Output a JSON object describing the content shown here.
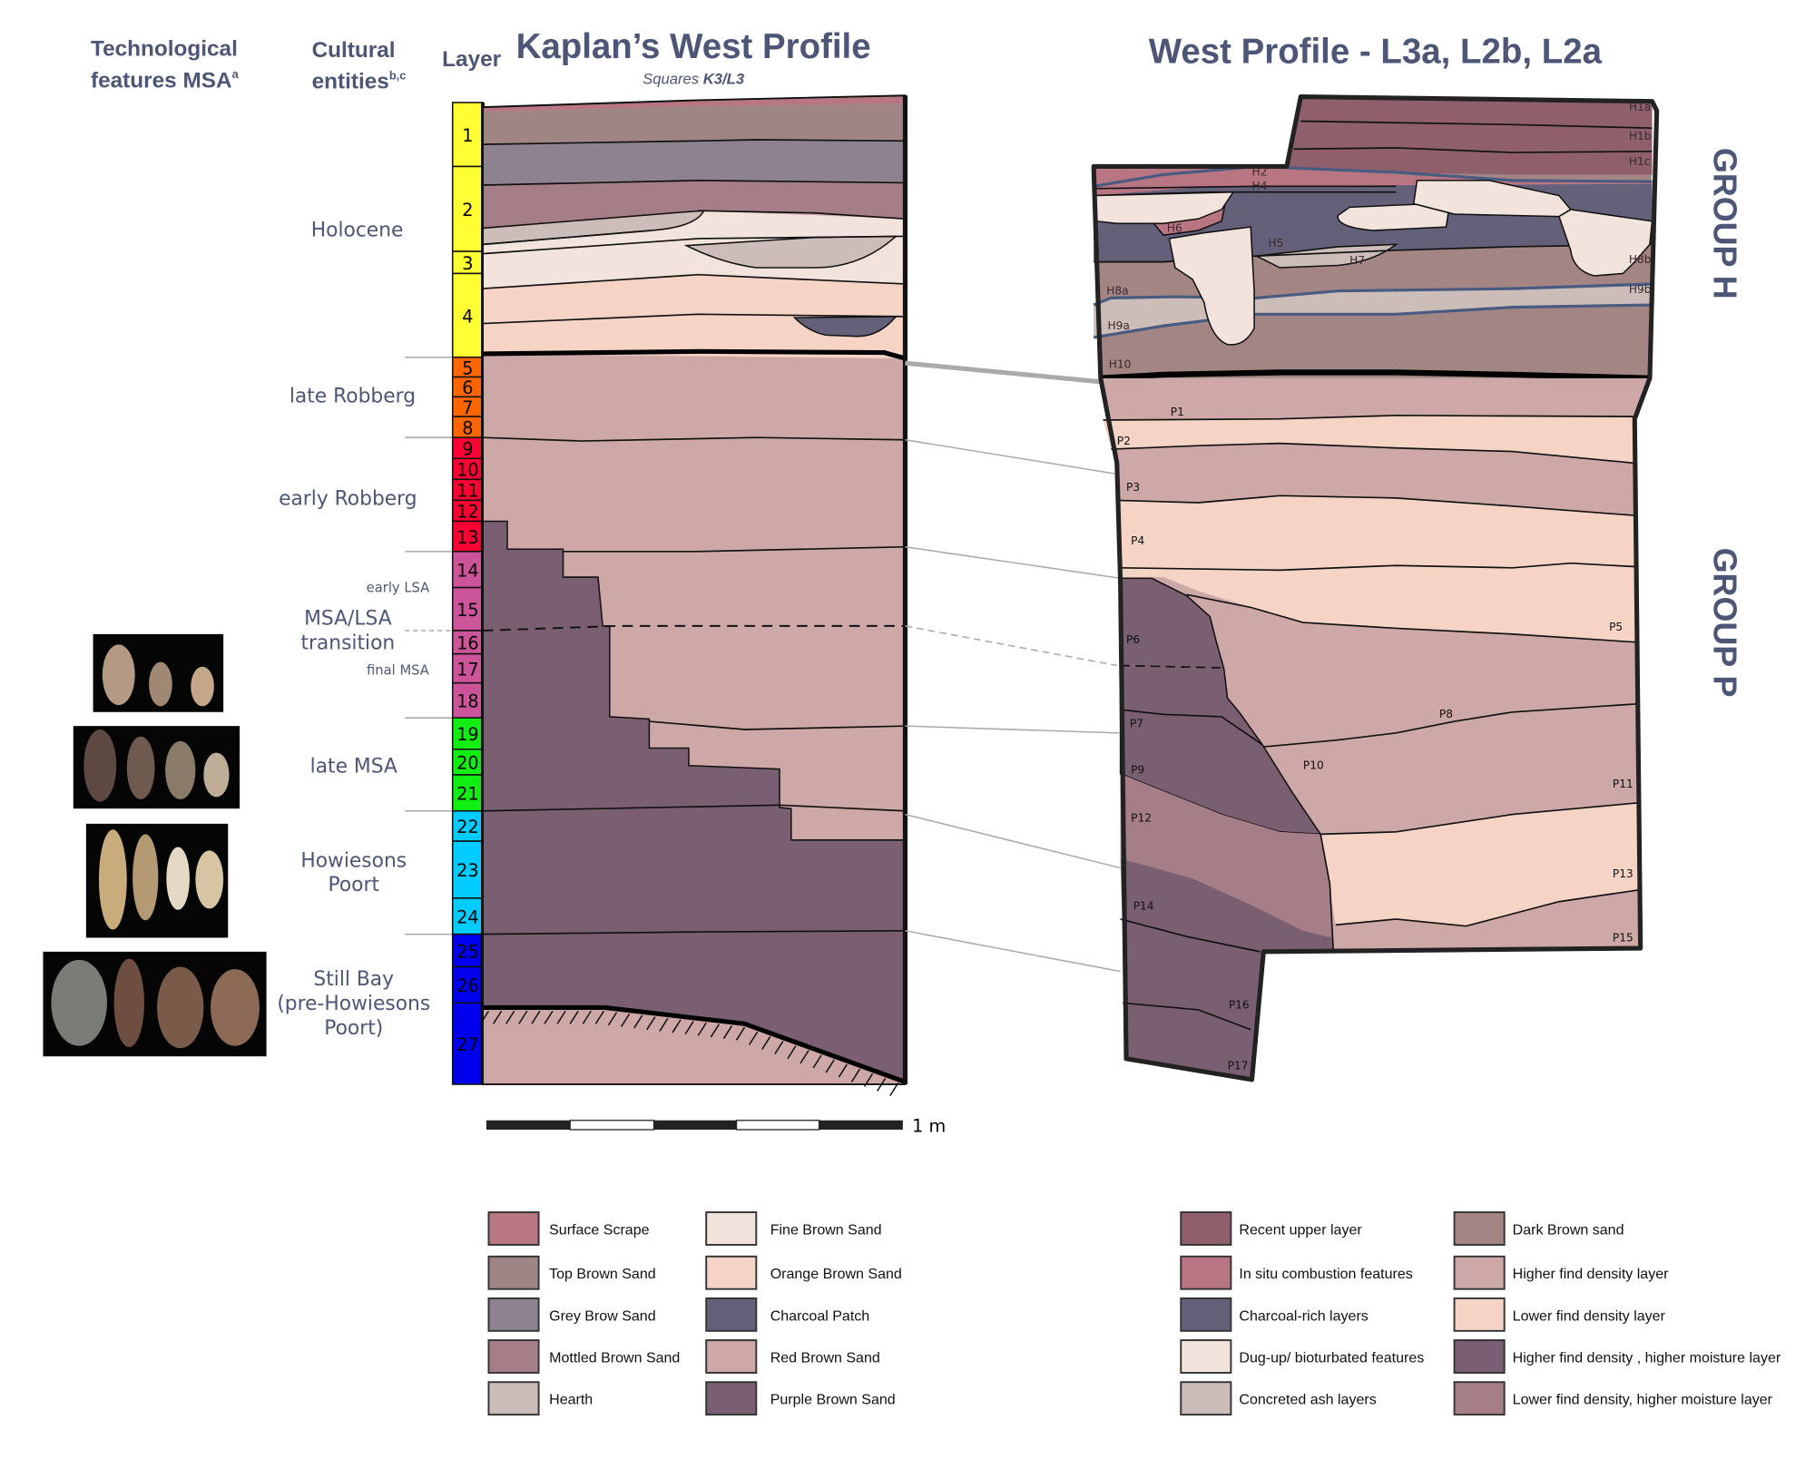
{
  "headers": {
    "technological_line1": "Technological",
    "technological_line2": "features MSA",
    "technological_sup": "a",
    "cultural_line1": "Cultural",
    "cultural_line2": "entities",
    "cultural_sup": "b,c",
    "layer": "Layer",
    "kaplan_title": "Kaplan’s West Profile",
    "kaplan_subtitle_prefix": "Squares ",
    "kaplan_subtitle_bold": "K3/L3",
    "west_title": "West Profile - L3a, L2b, L2a",
    "group_h": "GROUP H",
    "group_p": "GROUP P"
  },
  "cultural_entities": {
    "holocene": "Holocene",
    "late_robberg": "late Robberg",
    "early_robberg": "early Robberg",
    "early_lsa": "early LSA",
    "msa_lsa_1": "MSA/LSA",
    "msa_lsa_2": "transition",
    "final_msa": "final MSA",
    "late_msa": "late MSA",
    "howiesons_1": "Howiesons",
    "howiesons_2": "Poort",
    "stillbay_1": "Still Bay",
    "stillbay_2": "(pre-Howiesons",
    "stillbay_3": "Poort)"
  },
  "layers": [
    {
      "n": "1",
      "color": "#ffff33"
    },
    {
      "n": "2",
      "color": "#ffff33"
    },
    {
      "n": "3",
      "color": "#ffff33"
    },
    {
      "n": "4",
      "color": "#ffff33"
    },
    {
      "n": "5",
      "color": "#ff6600"
    },
    {
      "n": "6",
      "color": "#ff6600"
    },
    {
      "n": "7",
      "color": "#ff6600"
    },
    {
      "n": "8",
      "color": "#ff6600"
    },
    {
      "n": "9",
      "color": "#ff0033"
    },
    {
      "n": "10",
      "color": "#ff0033"
    },
    {
      "n": "11",
      "color": "#ff0033"
    },
    {
      "n": "12",
      "color": "#ff0033"
    },
    {
      "n": "13",
      "color": "#ff0033"
    },
    {
      "n": "14",
      "color": "#cc5599"
    },
    {
      "n": "15",
      "color": "#cc5599"
    },
    {
      "n": "16",
      "color": "#cc5599"
    },
    {
      "n": "17",
      "color": "#cc5599"
    },
    {
      "n": "18",
      "color": "#cc5599"
    },
    {
      "n": "19",
      "color": "#11ee11"
    },
    {
      "n": "20",
      "color": "#11ee11"
    },
    {
      "n": "21",
      "color": "#11ee11"
    },
    {
      "n": "22",
      "color": "#00ccff"
    },
    {
      "n": "23",
      "color": "#00ccff"
    },
    {
      "n": "24",
      "color": "#00ccff"
    },
    {
      "n": "25",
      "color": "#0000ee"
    },
    {
      "n": "26",
      "color": "#0000ee"
    },
    {
      "n": "27",
      "color": "#0000ee"
    }
  ],
  "scale_label": "1 m",
  "h_labels": [
    "H1a",
    "H1b",
    "H1c",
    "H2",
    "H4",
    "H6",
    "H5",
    "H7",
    "H8b",
    "H8a",
    "H9b",
    "H9a",
    "H10"
  ],
  "p_labels": [
    "P1",
    "P2",
    "P3",
    "P4",
    "P5",
    "P6",
    "P7",
    "P8",
    "P9",
    "P10",
    "P11",
    "P12",
    "P13",
    "P14",
    "P15",
    "P16",
    "P17"
  ],
  "legend_kaplan": [
    {
      "label": "Surface Scrape",
      "color": "#b87582"
    },
    {
      "label": "Top Brown Sand",
      "color": "#a08585"
    },
    {
      "label": "Grey Brow Sand",
      "color": "#8e8290"
    },
    {
      "label": "Mottled Brown Sand",
      "color": "#a57e88"
    },
    {
      "label": "Hearth",
      "color": "#cdbdb8"
    },
    {
      "label": "Fine Brown Sand",
      "color": "#f2e3dc"
    },
    {
      "label": "Orange Brown Sand",
      "color": "#f5d4c6"
    },
    {
      "label": "Charcoal Patch",
      "color": "#646079"
    },
    {
      "label": "Red Brown Sand",
      "color": "#cda8a6"
    },
    {
      "label": "Purple Brown Sand",
      "color": "#7a5f72"
    }
  ],
  "legend_west": [
    {
      "label": "Recent upper layer",
      "color": "#8f606c"
    },
    {
      "label": "In situ combustion features",
      "color": "#b87582"
    },
    {
      "label": "Charcoal-rich layers",
      "color": "#646079"
    },
    {
      "label": "Dug-up/ bioturbated features",
      "color": "#f2e3dc"
    },
    {
      "label": "Concreted ash layers",
      "color": "#cdbdb8"
    },
    {
      "label": "Dark Brown sand",
      "color": "#a38584"
    },
    {
      "label": "Higher find density layer",
      "color": "#cda8a6"
    },
    {
      "label": "Lower find density layer",
      "color": "#f5d4c6"
    },
    {
      "label": "Higher find density , higher moisture layer",
      "color": "#7a5f72"
    },
    {
      "label": "Lower find density, higher moisture layer",
      "color": "#a57e88"
    }
  ]
}
